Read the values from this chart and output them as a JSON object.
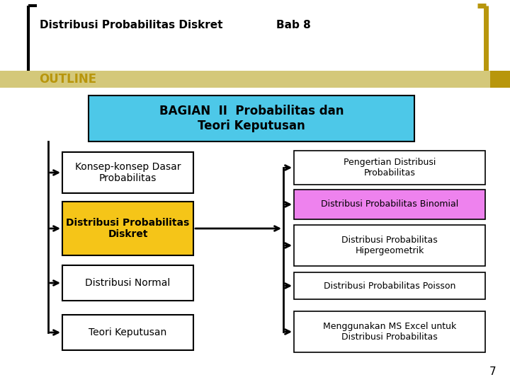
{
  "title_left": "Distribusi Probabilitas Diskret",
  "title_right": "Bab 8",
  "outline_text": "OUTLINE",
  "outline_color": "#b8960c",
  "bg_color": "#ffffff",
  "header_text": "BAGIAN  II  Probabilitas dan\nTeori Keputusan",
  "header_bg": "#4dc8e8",
  "header_text_color": "#000000",
  "left_boxes": [
    {
      "text": "Konsep-konsep Dasar\nProbabilitas",
      "bg": "#ffffff",
      "border": "#000000",
      "bold": false,
      "text_color": "#000000"
    },
    {
      "text": "Distribusi Probabilitas\nDiskret",
      "bg": "#f5c518",
      "border": "#000000",
      "bold": true,
      "text_color": "#000000"
    },
    {
      "text": "Distribusi Normal",
      "bg": "#ffffff",
      "border": "#000000",
      "bold": false,
      "text_color": "#000000"
    },
    {
      "text": "Teori Keputusan",
      "bg": "#ffffff",
      "border": "#000000",
      "bold": false,
      "text_color": "#000000"
    }
  ],
  "right_boxes": [
    {
      "text": "Pengertian Distribusi\nProbabilitas",
      "bg": "#ffffff",
      "border": "#000000",
      "bold": false,
      "text_color": "#000000"
    },
    {
      "text": "Distribusi Probabilitas Binomial",
      "bg": "#ee82ee",
      "border": "#000000",
      "bold": false,
      "text_color": "#000000"
    },
    {
      "text": "Distribusi Probabilitas\nHipergeometrik",
      "bg": "#ffffff",
      "border": "#000000",
      "bold": false,
      "text_color": "#000000"
    },
    {
      "text": "Distribusi Probabilitas Poisson",
      "bg": "#ffffff",
      "border": "#000000",
      "bold": false,
      "text_color": "#000000"
    },
    {
      "text": "Menggunakan MS Excel untuk\nDistribusi Probabilitas",
      "bg": "#ffffff",
      "border": "#000000",
      "bold": false,
      "text_color": "#000000"
    }
  ],
  "page_number": "7",
  "gold_color": "#b8960c",
  "black_color": "#000000",
  "outline_bar_color": "#d4c87a",
  "fig_w": 7.2,
  "fig_h": 5.4,
  "dpi": 100
}
